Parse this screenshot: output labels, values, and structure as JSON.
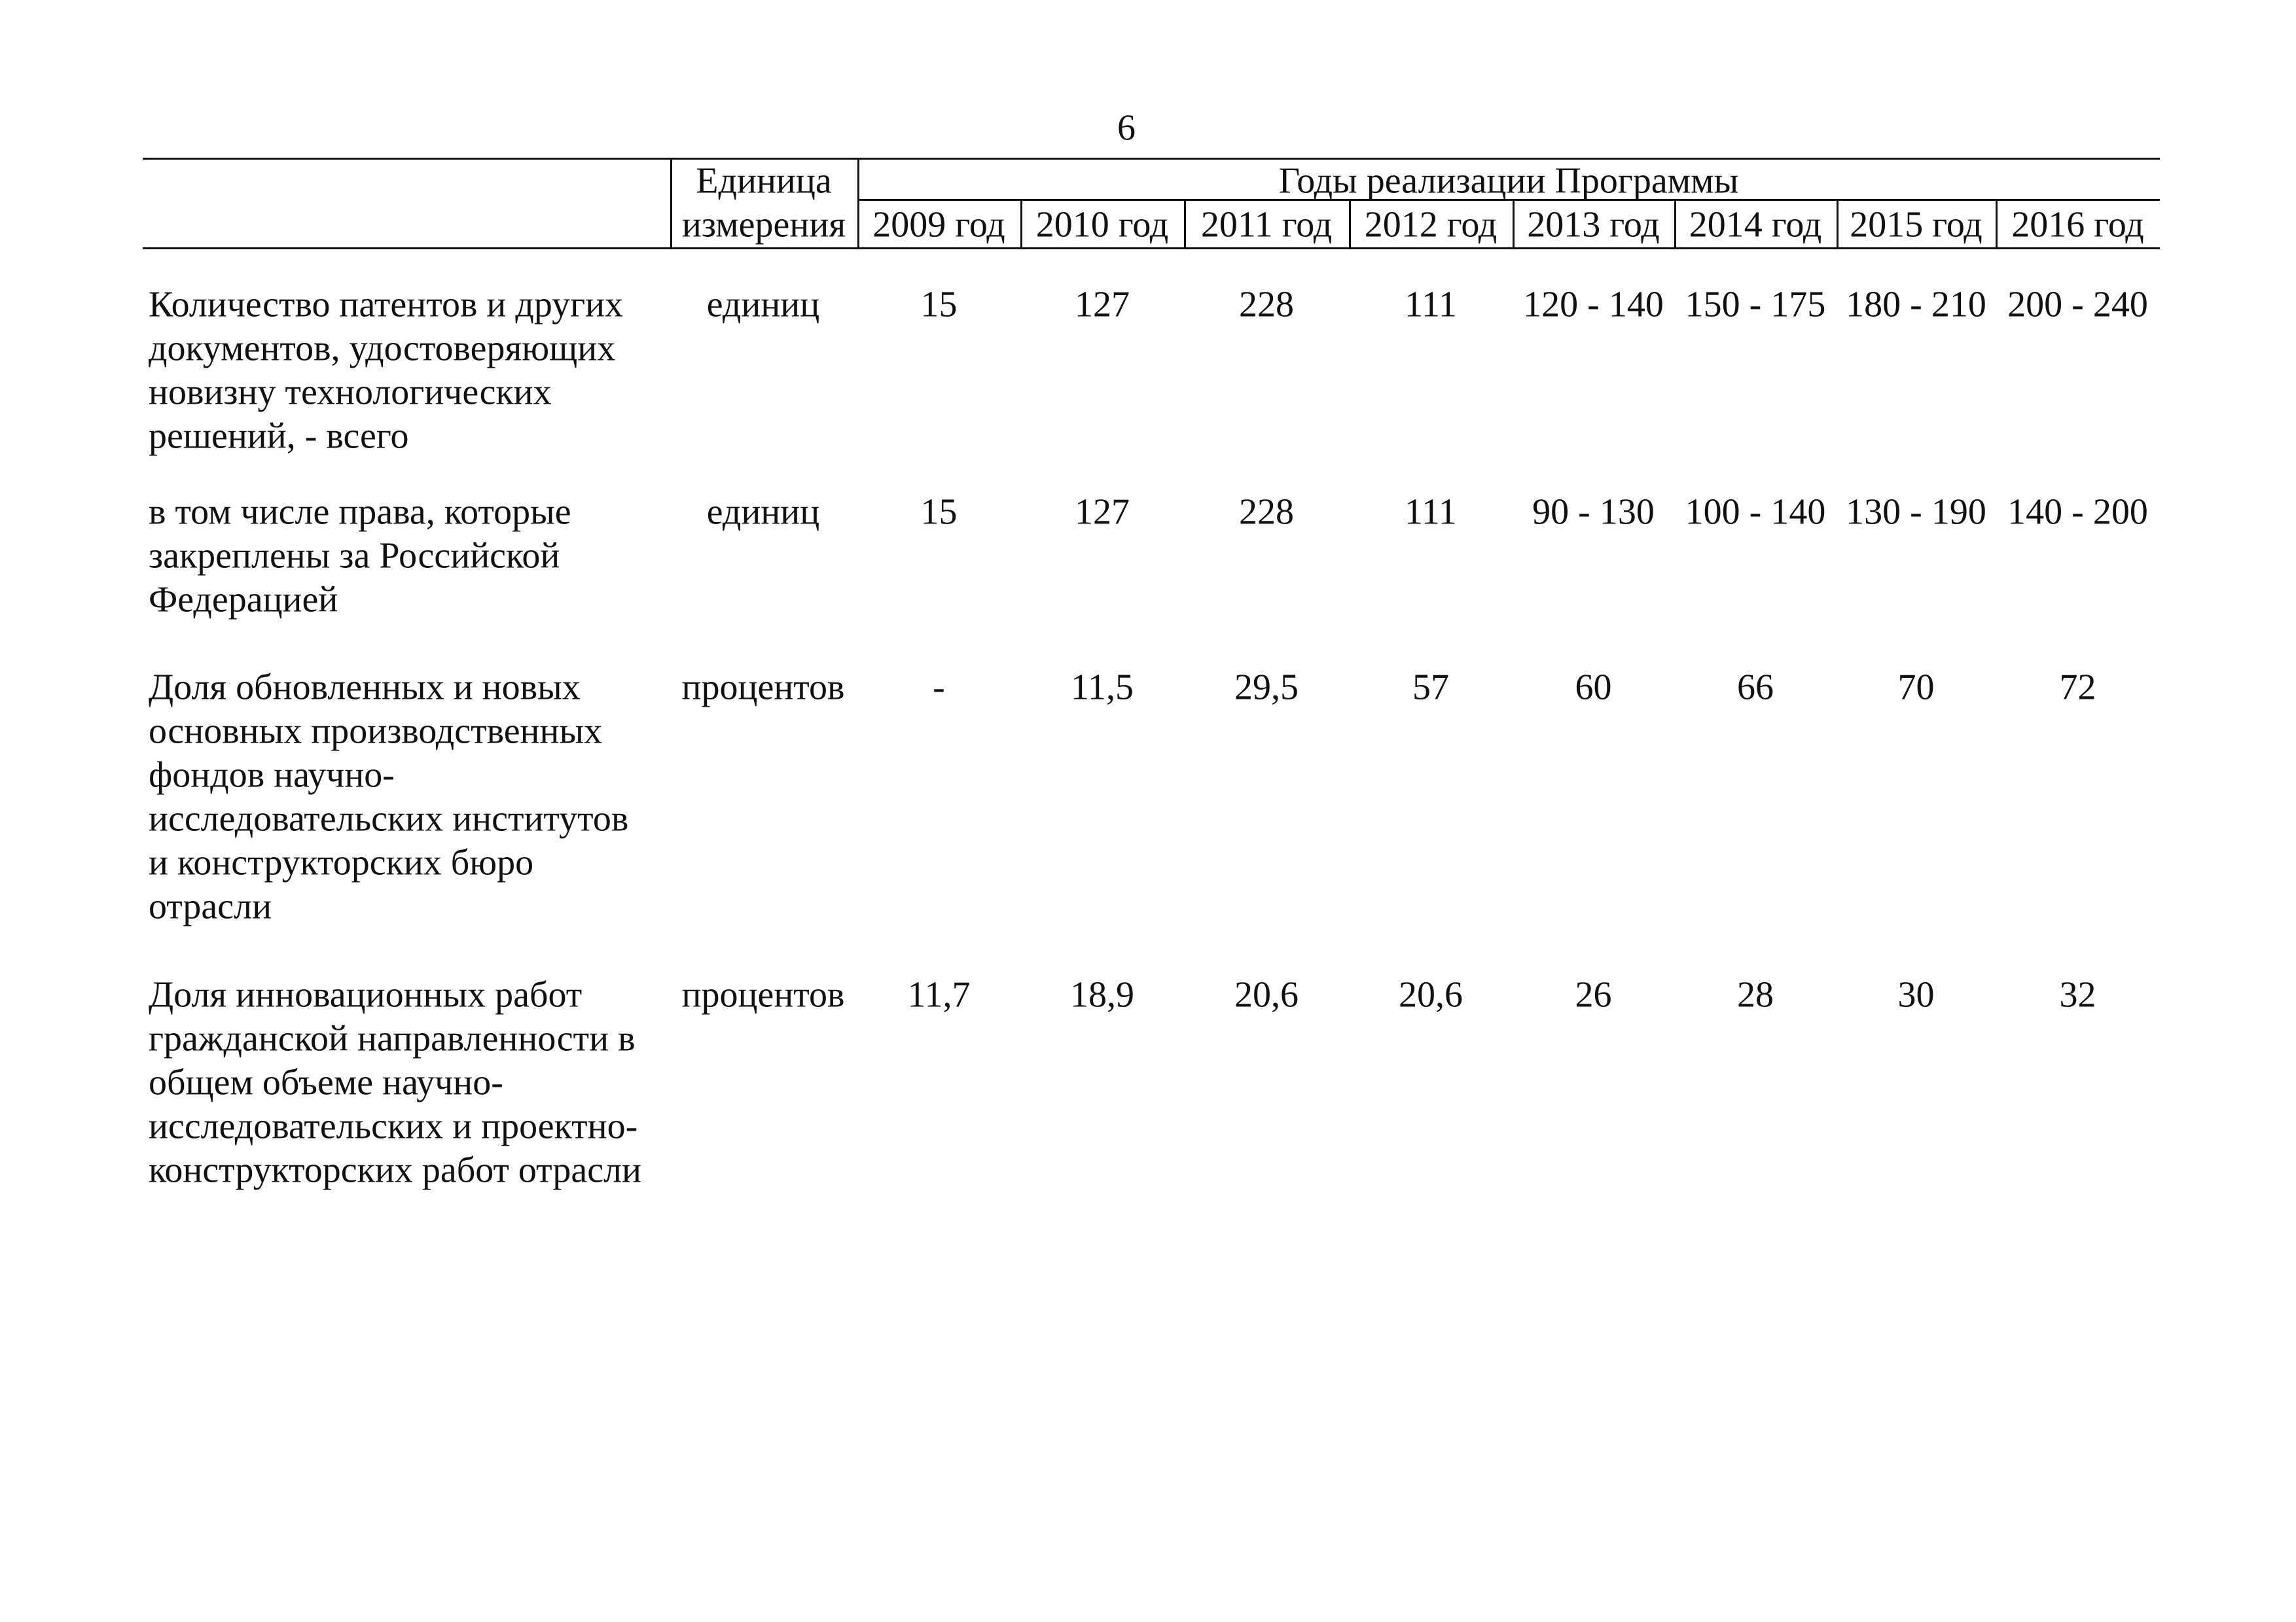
{
  "page_number": "6",
  "table": {
    "header": {
      "unit": [
        "Единица",
        "измерения"
      ],
      "years_title": "Годы реализации Программы",
      "years": [
        "2009 год",
        "2010 год",
        "2011 год",
        "2012 год",
        "2013 год",
        "2014 год",
        "2015 год",
        "2016 год"
      ]
    },
    "rows": [
      {
        "label": [
          "Количество патентов и других",
          "документов, удостоверяющих",
          "новизну технологических",
          "решений, - всего"
        ],
        "unit": "единиц",
        "values": [
          "15",
          "127",
          "228",
          "111",
          "120 - 140",
          "150 - 175",
          "180 - 210",
          "200 - 240"
        ]
      },
      {
        "label": [
          "в том числе права, которые",
          "закреплены за Российской",
          "Федерацией"
        ],
        "unit": "единиц",
        "values": [
          "15",
          "127",
          "228",
          "111",
          "90 - 130",
          "100 - 140",
          "130 - 190",
          "140 - 200"
        ]
      },
      {
        "label": [
          "Доля обновленных и новых",
          "основных производственных",
          "фондов научно-",
          "исследовательских институтов",
          "и конструкторских бюро",
          "отрасли"
        ],
        "unit": "процентов",
        "values": [
          "-",
          "11,5",
          "29,5",
          "57",
          "60",
          "66",
          "70",
          "72"
        ]
      },
      {
        "label": [
          "Доля инновационных работ",
          "гражданской направленности в",
          "общем объеме научно-",
          "исследовательских и проектно-",
          "конструкторских работ отрасли"
        ],
        "unit": "процентов",
        "values": [
          "11,7",
          "18,9",
          "20,6",
          "20,6",
          "26",
          "28",
          "30",
          "32"
        ]
      }
    ]
  }
}
